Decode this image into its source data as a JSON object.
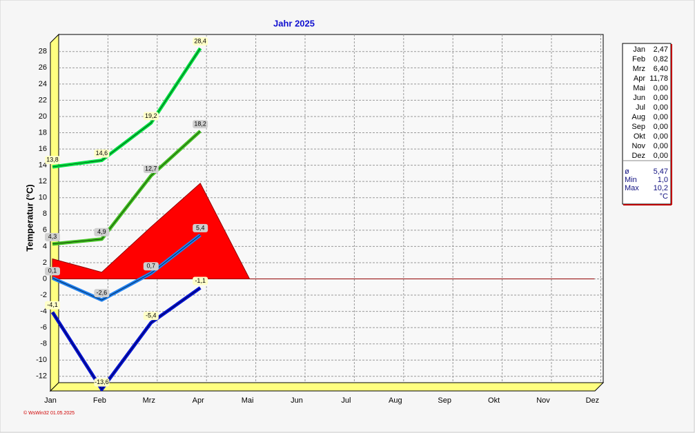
{
  "chart_data": {
    "type": "line",
    "title": "Jahr  2025",
    "y_label": "Temperatur  (°C)",
    "footer": "© WsWin32  01.05.2025",
    "categories": [
      "Jan",
      "Feb",
      "Mrz",
      "Apr",
      "Mai",
      "Jun",
      "Jul",
      "Aug",
      "Sep",
      "Okt",
      "Nov",
      "Dez"
    ],
    "ylim": [
      -13.8,
      29
    ],
    "yticks": [
      -12,
      -10,
      -8,
      -6,
      -4,
      -2,
      0,
      2,
      4,
      6,
      8,
      10,
      12,
      14,
      16,
      18,
      20,
      22,
      24,
      26,
      28
    ],
    "grid": true,
    "series": [
      {
        "color": "#00e040",
        "values": [
          13.8,
          14.6,
          19.2,
          28.4,
          null,
          null,
          null,
          null,
          null,
          null,
          null,
          null
        ],
        "value_labels": [
          "13,8",
          "14,6",
          "19,2",
          "28,4",
          null,
          null,
          null,
          null,
          null,
          null,
          null,
          null
        ],
        "label_style": "light"
      },
      {
        "color": "#40c020",
        "values": [
          4.3,
          4.9,
          12.7,
          18.2,
          null,
          null,
          null,
          null,
          null,
          null,
          null,
          null
        ],
        "value_labels": [
          "4,3",
          "4,9",
          "12,7",
          "18,2",
          null,
          null,
          null,
          null,
          null,
          null,
          null,
          null
        ],
        "label_style": "gray"
      },
      {
        "color": "#1e80f0",
        "values": [
          0.1,
          -2.6,
          0.7,
          5.4,
          null,
          null,
          null,
          null,
          null,
          null,
          null,
          null
        ],
        "value_labels": [
          "0,1",
          "-2,6",
          "0,7",
          "5,4",
          null,
          null,
          null,
          null,
          null,
          null,
          null,
          null
        ],
        "label_style": "gray"
      },
      {
        "color": "#0010d0",
        "values": [
          -4.1,
          -13.6,
          -5.4,
          -1.1,
          null,
          null,
          null,
          null,
          null,
          null,
          null,
          null
        ],
        "value_labels": [
          "-4,1",
          "-13,6",
          "-5,4",
          "-1,1",
          null,
          null,
          null,
          null,
          null,
          null,
          null,
          null
        ],
        "label_style": "light"
      },
      {
        "color": "#ff0000",
        "area": true,
        "values": [
          2.47,
          0.82,
          6.4,
          11.78,
          0,
          0,
          0,
          0,
          0,
          0,
          0,
          0
        ],
        "value_labels": [
          "2,47",
          "0,82",
          "6,40",
          "11,78",
          "0,00",
          "0,00",
          "0,00",
          "0,00",
          "0,00",
          "0,00",
          "0,00",
          "0,00"
        ]
      }
    ],
    "summary": [
      {
        "label": "ø",
        "value": "5,47"
      },
      {
        "label": "Min",
        "value": "1,0"
      },
      {
        "label": "Max",
        "value": "10,2"
      }
    ],
    "unit": "°C"
  }
}
